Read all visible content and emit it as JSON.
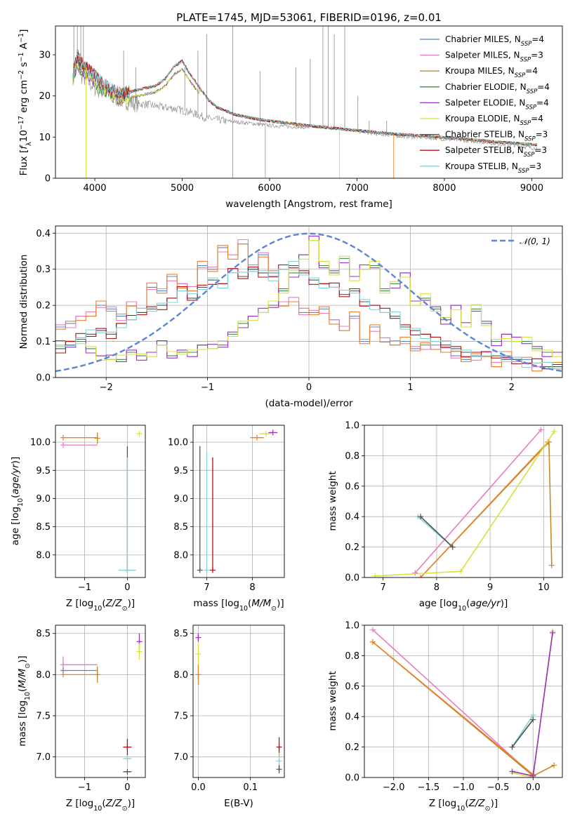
{
  "figure_title": "PLATE=1745, MJD=53061, FIBERID=0196, z=0.01",
  "models": [
    {
      "name": "Chabrier MILES",
      "nssp": "4",
      "color": "#5b84c8"
    },
    {
      "name": "Salpeter MILES",
      "nssp": "3",
      "color": "#e87cc0"
    },
    {
      "name": "Kroupa MILES",
      "nssp": "4",
      "color": "#c48a28"
    },
    {
      "name": "Chabrier ELODIE",
      "nssp": "4",
      "color": "#3c8c4a"
    },
    {
      "name": "Salpeter ELODIE",
      "nssp": "4",
      "color": "#9b30c0"
    },
    {
      "name": "Kroupa ELODIE",
      "nssp": "4",
      "color": "#d8e040"
    },
    {
      "name": "Chabrier STELIB",
      "nssp": "3",
      "color": "#505050"
    },
    {
      "name": "Salpeter STELIB",
      "nssp": "3",
      "color": "#b01010"
    },
    {
      "name": "Kroupa STELIB",
      "nssp": "3",
      "color": "#80d4d8"
    }
  ],
  "chart_data": [
    {
      "type": "line",
      "title": "PLATE=1745, MJD=53061, FIBERID=0196, z=0.01",
      "xlabel": "wavelength [Angstrom, rest frame]",
      "ylabel": "Flux [f_λ 10^-17 erg cm^-2 s^-1 A^-1]",
      "xlim": [
        3550,
        9350
      ],
      "ylim": [
        0,
        37
      ],
      "xticks": [
        4000,
        5000,
        6000,
        7000,
        8000,
        9000
      ],
      "yticks": [
        0,
        10,
        20,
        30
      ],
      "legend_position": "top-right",
      "data_spectrum": {
        "name": "observed spectrum",
        "color": "#888888",
        "x": [
          3750,
          3800,
          3850,
          3900,
          3950,
          4000,
          4100,
          4200,
          4300,
          4400,
          4500,
          4600,
          4700,
          4800,
          4900,
          5000,
          5100,
          5200,
          5300,
          5400,
          5600,
          5800,
          6000,
          6200,
          6400,
          6600,
          6800,
          7000,
          7200,
          7400,
          7500,
          7800,
          8000,
          8200,
          8400,
          8600,
          8800,
          9000,
          9060
        ],
        "y": [
          26,
          28,
          25,
          24,
          23,
          22,
          21,
          20,
          19,
          18.5,
          18,
          18,
          17.5,
          17.2,
          17,
          16.5,
          16,
          15.2,
          14.5,
          14.2,
          13.7,
          13.3,
          12.8,
          12.6,
          12.4,
          12.6,
          12.2,
          11.5,
          10.8,
          10.5,
          10.2,
          9.9,
          9.5,
          9.2,
          8.9,
          8.4,
          8.0,
          7.4,
          7.2
        ]
      },
      "model_spectrum": {
        "x": [
          3750,
          3800,
          3850,
          3900,
          3950,
          4000,
          4100,
          4200,
          4300,
          4400,
          4500,
          4600,
          4700,
          4800,
          4900,
          5000,
          5100,
          5200,
          5300,
          5400,
          5600,
          5800,
          6000,
          6200,
          6400,
          6600,
          6800,
          7000,
          7200,
          7400,
          7600,
          7800,
          8000,
          8200,
          8400,
          8600,
          8800,
          9000,
          9060
        ],
        "y": [
          26,
          30,
          28,
          27,
          26,
          25,
          23,
          21.5,
          20.5,
          21,
          21.5,
          22,
          22.5,
          24,
          27,
          28.5,
          25,
          22,
          19,
          17.2,
          15.5,
          14.6,
          13.9,
          13.4,
          12.9,
          12.4,
          12.0,
          11.6,
          11.2,
          10.8,
          10.5,
          10.2,
          9.9,
          9.6,
          9.2,
          8.8,
          8.5,
          8.2,
          8.1
        ]
      }
    },
    {
      "type": "histogram",
      "xlabel": "(data-model)/error",
      "ylabel": "Normed distribution",
      "xlim": [
        -2.5,
        2.5
      ],
      "ylim": [
        0,
        0.42
      ],
      "xticks": [
        -2,
        -1,
        0,
        1,
        2
      ],
      "yticks": [
        0.0,
        0.1,
        0.2,
        0.3,
        0.4
      ],
      "bin_edges_start": -2.5,
      "bin_width": 0.1,
      "reference_curve": {
        "name": "𝒩(0, 1)",
        "color": "#5b84d8",
        "mean": 0,
        "sigma": 1
      },
      "groups": [
        {
          "name": "MILES",
          "colors": [
            "#5b84c8",
            "#e87cc0",
            "#e8822e"
          ],
          "values": [
            0.14,
            0.15,
            0.17,
            0.17,
            0.2,
            0.19,
            0.17,
            0.21,
            0.18,
            0.25,
            0.24,
            0.28,
            0.26,
            0.24,
            0.31,
            0.3,
            0.36,
            0.34,
            0.37,
            0.3,
            0.34,
            0.29,
            0.21,
            0.21,
            0.18,
            0.18,
            0.19,
            0.16,
            0.13,
            0.17,
            0.1,
            0.14,
            0.11,
            0.09,
            0.1,
            0.08,
            0.09,
            0.09,
            0.07,
            0.06,
            0.05,
            0.06,
            0.07,
            0.03,
            0.06,
            0.05,
            0.05,
            0.03,
            0.03,
            0.03
          ]
        },
        {
          "name": "ELODIE",
          "colors": [
            "#3c8c4a",
            "#9b30c0",
            "#d8e040"
          ],
          "values": [
            0.09,
            0.09,
            0.1,
            0.08,
            0.06,
            0.05,
            0.05,
            0.07,
            0.06,
            0.07,
            0.09,
            0.06,
            0.07,
            0.07,
            0.09,
            0.08,
            0.09,
            0.12,
            0.15,
            0.17,
            0.18,
            0.2,
            0.24,
            0.29,
            0.34,
            0.38,
            0.31,
            0.29,
            0.33,
            0.28,
            0.3,
            0.31,
            0.24,
            0.26,
            0.29,
            0.2,
            0.22,
            0.19,
            0.16,
            0.2,
            0.14,
            0.19,
            0.15,
            0.1,
            0.12,
            0.1,
            0.1,
            0.08,
            0.07,
            0.07
          ]
        },
        {
          "name": "STELIB",
          "colors": [
            "#505050",
            "#b01010",
            "#80d4d8"
          ],
          "values": [
            0.08,
            0.1,
            0.11,
            0.12,
            0.13,
            0.12,
            0.15,
            0.16,
            0.18,
            0.19,
            0.2,
            0.22,
            0.24,
            0.22,
            0.25,
            0.27,
            0.26,
            0.29,
            0.28,
            0.3,
            0.29,
            0.28,
            0.3,
            0.31,
            0.29,
            0.27,
            0.26,
            0.25,
            0.23,
            0.24,
            0.21,
            0.2,
            0.18,
            0.17,
            0.14,
            0.13,
            0.12,
            0.1,
            0.09,
            0.08,
            0.07,
            0.07,
            0.06,
            0.06,
            0.05,
            0.05,
            0.04,
            0.04,
            0.03,
            0.03
          ]
        }
      ]
    },
    {
      "type": "scatter",
      "xlabel": "Z [log10(Z/Z☉)]",
      "ylabel": "age [log10(age/yr)]",
      "xlim": [
        -1.68,
        0.42
      ],
      "ylim": [
        7.6,
        10.3
      ],
      "xticks": [
        -1,
        0
      ],
      "yticks": [
        8.0,
        8.5,
        9.0,
        9.5,
        10.0
      ],
      "points": [
        {
          "x": -1.5,
          "y": 10.08,
          "xerr": [
            0,
            0.8
          ],
          "color": "#e8822e"
        },
        {
          "x": -1.5,
          "y": 9.95,
          "xerr": [
            0,
            0.8
          ],
          "color": "#e87cc0"
        },
        {
          "x": -0.7,
          "y": 10.07,
          "yerr": 0.1,
          "color": "#c48a28"
        },
        {
          "x": 0.0,
          "y": 7.73,
          "yerr": [
            0,
            2.2
          ],
          "color": "#505050"
        },
        {
          "x": 0.0,
          "y": 7.73,
          "yerr": [
            0,
            2.0
          ],
          "color": "#80d4d8"
        },
        {
          "x": 0.0,
          "y": 7.73,
          "xerr": 0.2,
          "color": "#80d4d8"
        },
        {
          "x": 0.28,
          "y": 10.15,
          "color": "#d8e040"
        }
      ]
    },
    {
      "type": "scatter",
      "xlabel": "mass [log10(M/M☉)]",
      "ylabel": "",
      "xlim": [
        6.7,
        8.7
      ],
      "ylim": [
        7.6,
        10.3
      ],
      "xticks": [
        7,
        8
      ],
      "yticks": [
        8.0,
        8.5,
        9.0,
        9.5,
        10.0
      ],
      "points": [
        {
          "x": 6.85,
          "y": 7.73,
          "yerr": [
            0,
            2.2
          ],
          "color": "#505050"
        },
        {
          "x": 7.0,
          "y": 7.73,
          "yerr": [
            0,
            2.1
          ],
          "color": "#80d4d8"
        },
        {
          "x": 7.13,
          "y": 7.73,
          "yerr": [
            0,
            2.0
          ],
          "color": "#b01010"
        },
        {
          "x": 8.1,
          "y": 10.08,
          "xerr": 0.15,
          "color": "#e8822e"
        },
        {
          "x": 8.3,
          "y": 10.15,
          "xerr": 0.15,
          "color": "#d8e040"
        },
        {
          "x": 8.45,
          "y": 10.17,
          "xerr": 0.1,
          "color": "#9b30c0"
        }
      ]
    },
    {
      "type": "line",
      "xlabel": "age [log10(age/yr)]",
      "ylabel": "mass weight",
      "xlim": [
        6.65,
        10.35
      ],
      "ylim": [
        0,
        1
      ],
      "xticks": [
        7,
        8,
        9,
        10
      ],
      "yticks": [
        0.0,
        0.2,
        0.4,
        0.6,
        0.8,
        1.0
      ],
      "series": [
        {
          "color": "#e87cc0",
          "x": [
            7.6,
            9.95
          ],
          "y": [
            0.03,
            0.97
          ]
        },
        {
          "color": "#c48a28",
          "x": [
            7.7,
            10.1,
            10.15
          ],
          "y": [
            0.0,
            0.89,
            0.08
          ]
        },
        {
          "color": "#e8822e",
          "x": [
            7.7,
            10.08
          ],
          "y": [
            0.0,
            0.89
          ]
        },
        {
          "color": "#d8e040",
          "x": [
            6.85,
            8.45,
            10.2
          ],
          "y": [
            0.01,
            0.04,
            0.96
          ]
        },
        {
          "color": "#80d4d8",
          "x": [
            7.65,
            8.3
          ],
          "y": [
            0.4,
            0.2
          ]
        },
        {
          "color": "#505050",
          "x": [
            7.7,
            8.3
          ],
          "y": [
            0.4,
            0.2
          ]
        }
      ]
    },
    {
      "type": "scatter",
      "xlabel": "Z [log10(Z/Z☉)]",
      "ylabel": "mass [log10(M/M☉)]",
      "xlim": [
        -1.68,
        0.42
      ],
      "ylim": [
        6.75,
        8.6
      ],
      "xticks": [
        -1,
        0
      ],
      "yticks": [
        7.0,
        7.5,
        8.0,
        8.5
      ],
      "points": [
        {
          "x": -1.5,
          "y": 8.12,
          "xerr": [
            0,
            0.8
          ],
          "yerr": 0.1,
          "color": "#e87cc0"
        },
        {
          "x": -1.5,
          "y": 8.05,
          "xerr": [
            0,
            0.8
          ],
          "color": "#5b84c8"
        },
        {
          "x": -1.5,
          "y": 8.0,
          "xerr": [
            0,
            0.8
          ],
          "color": "#e8822e"
        },
        {
          "x": -0.7,
          "y": 8.0,
          "yerr": 0.1,
          "color": "#c48a28"
        },
        {
          "x": 0.0,
          "y": 7.12,
          "yerr": 0.1,
          "xerr": 0.1,
          "color": "#b01010"
        },
        {
          "x": 0.0,
          "y": 6.98,
          "xerr": 0.1,
          "color": "#80d4d8"
        },
        {
          "x": 0.0,
          "y": 6.82,
          "xerr": 0.1,
          "color": "#505050"
        },
        {
          "x": 0.28,
          "y": 8.4,
          "yerr": 0.1,
          "color": "#9b30c0"
        },
        {
          "x": 0.28,
          "y": 8.28,
          "yerr": 0.1,
          "color": "#d8e040"
        }
      ]
    },
    {
      "type": "scatter",
      "xlabel": "E(B-V)",
      "ylabel": "",
      "xlim": [
        -0.01,
        0.165
      ],
      "ylim": [
        6.75,
        8.6
      ],
      "xticks": [
        0.0,
        0.1
      ],
      "yticks": [
        7.0,
        7.5,
        8.0,
        8.5
      ],
      "points": [
        {
          "x": 0.0,
          "y": 8.45,
          "yerr": 0.05,
          "color": "#9b30c0"
        },
        {
          "x": 0.0,
          "y": 8.25,
          "yerr": 0.15,
          "color": "#d8e040"
        },
        {
          "x": 0.0,
          "y": 8.0,
          "yerr": 0.12,
          "color": "#e8822e"
        },
        {
          "x": 0.155,
          "y": 7.12,
          "yerr": 0.12,
          "color": "#b01010"
        },
        {
          "x": 0.155,
          "y": 6.95,
          "yerr": 0.1,
          "color": "#80d4d8"
        },
        {
          "x": 0.155,
          "y": 6.85,
          "yerr": 0.05,
          "color": "#505050"
        }
      ]
    },
    {
      "type": "line",
      "xlabel": "Z [log10(Z/Z☉)]",
      "ylabel": "mass weight",
      "xlim": [
        -2.42,
        0.42
      ],
      "ylim": [
        0,
        1
      ],
      "xticks": [
        -2.0,
        -1.5,
        -1.0,
        -0.5,
        0.0
      ],
      "yticks": [
        0.0,
        0.2,
        0.4,
        0.6,
        0.8,
        1.0
      ],
      "series": [
        {
          "color": "#e87cc0",
          "x": [
            -2.3,
            0.0
          ],
          "y": [
            0.97,
            0.01
          ]
        },
        {
          "color": "#c48a28",
          "x": [
            -2.3,
            0.0,
            0.3
          ],
          "y": [
            0.89,
            0.01,
            0.08
          ]
        },
        {
          "color": "#e8822e",
          "x": [
            -2.3,
            0.0
          ],
          "y": [
            0.89,
            0.02
          ]
        },
        {
          "color": "#d8e040",
          "x": [
            -0.3,
            0.0,
            0.28
          ],
          "y": [
            0.03,
            0.0,
            0.96
          ]
        },
        {
          "color": "#9b30c0",
          "x": [
            -0.3,
            0.0,
            0.28
          ],
          "y": [
            0.04,
            0.01,
            0.95
          ]
        },
        {
          "color": "#80d4d8",
          "x": [
            -0.3,
            0.0
          ],
          "y": [
            0.2,
            0.41
          ]
        },
        {
          "color": "#505050",
          "x": [
            -0.3,
            0.0
          ],
          "y": [
            0.2,
            0.38
          ]
        }
      ]
    }
  ]
}
